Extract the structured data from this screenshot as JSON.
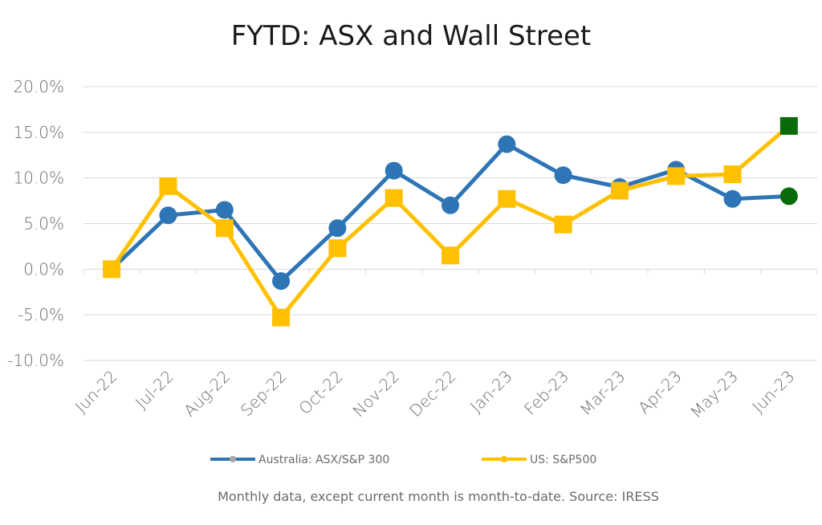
{
  "chart_data": {
    "type": "line",
    "title": "FYTD: ASX and Wall Street",
    "categories": [
      "Jun-22",
      "Jul-22",
      "Aug-22",
      "Sep-22",
      "Oct-22",
      "Nov-22",
      "Dec-22",
      "Jan-23",
      "Feb-23",
      "Mar-23",
      "Apr-23",
      "May-23",
      "Jun-23"
    ],
    "y_ticks": [
      "20.0%",
      "15.0%",
      "10.0%",
      "5.0%",
      "0.0%",
      "-5.0%",
      "-10.0%"
    ],
    "ylim": [
      -10,
      20
    ],
    "grid": true,
    "legend_position": "bottom",
    "series": [
      {
        "name": "Australia: ASX/S&P 300",
        "marker": "circle",
        "color": "#2E75B6",
        "last_point_color": "#0B6B0B",
        "values": [
          0.0,
          5.9,
          6.5,
          -1.3,
          4.5,
          10.8,
          7.0,
          13.7,
          10.3,
          9.0,
          10.9,
          7.7,
          8.0
        ]
      },
      {
        "name": "US: S&P500",
        "marker": "square",
        "color": "#FFC000",
        "last_point_color": "#0B6B0B",
        "values": [
          0.0,
          9.1,
          4.5,
          -5.3,
          2.3,
          7.8,
          1.5,
          7.7,
          4.9,
          8.6,
          10.2,
          10.4,
          15.7
        ]
      }
    ],
    "footnote": "Monthly data, except current month is month-to-date.  Source: IRESS"
  }
}
